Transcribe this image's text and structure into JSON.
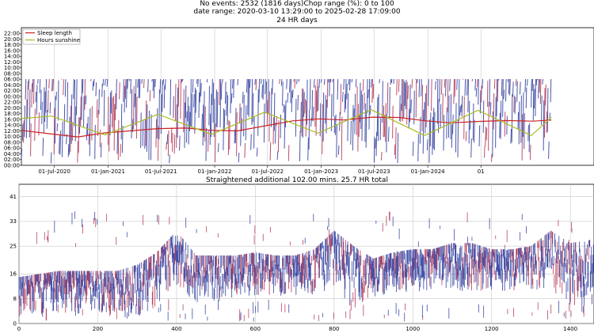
{
  "header": {
    "line1": "No events: 2532 (1816 days)Chop range (%): 0 to 100",
    "line2": "date range: 2020-03-10 13:29:00 to 2025-02-28 17:09:00",
    "line3": "24 HR days"
  },
  "colors": {
    "sleep_length": "#cc2222",
    "hours_sunshine": "#aabb22",
    "event_blue": "#2a3a9c",
    "event_red": "#b03050",
    "grid": "#c8c8c8"
  },
  "chart_data": [
    {
      "type": "line",
      "title": "24 HR days",
      "legend": {
        "entries": [
          "Sleep length",
          "Hours sunshine"
        ],
        "placement": "top-left"
      },
      "x_type": "date",
      "x_range": [
        "2020-03-10",
        "2025-02-28"
      ],
      "x_ticks": [
        "01-Jul-2020",
        "01-Jan-2021",
        "01-Jul-2021",
        "01-Jan-2022",
        "01-Jul-2022",
        "01-Jan-2023",
        "01-Jul-2023",
        "01-Jan-2024",
        "01"
      ],
      "x_tick_dates": [
        "2020-07-01",
        "2021-01-01",
        "2021-07-01",
        "2022-01-01",
        "2022-07-01",
        "2023-01-01",
        "2023-07-01",
        "2024-01-01",
        "2024-07-01"
      ],
      "y_ticks": [
        "00:00",
        "02:00",
        "04:00",
        "06:00",
        "08:00",
        "10:00",
        "12:00",
        "14:00",
        "16:00",
        "18:00",
        "20:00",
        "22:00",
        "00:00",
        "02:00",
        "04:00",
        "06:00",
        "08:00",
        "10:00",
        "12:00",
        "14:00",
        "16:00",
        "18:00",
        "20:00",
        "22:00"
      ],
      "y_range_hours": [
        0,
        48
      ],
      "series": [
        {
          "name": "Sleep length",
          "x": [
            "2020-03-10",
            "2020-06-15",
            "2020-09-20",
            "2020-12-20",
            "2021-03-15",
            "2021-06-20",
            "2021-09-25",
            "2021-12-25",
            "2022-03-20",
            "2022-06-25",
            "2022-09-25",
            "2022-12-25",
            "2023-03-20",
            "2023-06-25",
            "2023-09-25",
            "2023-12-25",
            "2024-03-20",
            "2024-06-25",
            "2024-09-25",
            "2024-12-25",
            "2025-02-28"
          ],
          "y_hours": [
            12.2,
            11.0,
            9.9,
            11.3,
            12.0,
            12.8,
            13.0,
            12.2,
            12.0,
            13.8,
            15.5,
            16.2,
            15.8,
            16.8,
            16.7,
            15.5,
            14.8,
            15.3,
            15.6,
            15.4,
            15.8
          ]
        },
        {
          "name": "Hours sunshine",
          "x": [
            "2020-03-10",
            "2020-06-21",
            "2020-12-21",
            "2021-06-21",
            "2021-12-21",
            "2022-06-21",
            "2022-12-21",
            "2023-06-21",
            "2023-12-21",
            "2024-06-21",
            "2024-12-21",
            "2025-02-28"
          ],
          "y_hours": [
            16.3,
            17.2,
            10.6,
            17.8,
            10.8,
            18.5,
            11.2,
            19.4,
            10.4,
            19.2,
            10.4,
            16.8
          ]
        }
      ]
    },
    {
      "type": "scatter",
      "title": "Straightened additional 102.00 mins. 25.7 HR total",
      "x_ticks": [
        0,
        200,
        400,
        600,
        800,
        1000,
        1200,
        1400
      ],
      "y_ticks": [
        0,
        8,
        16,
        25,
        33,
        41
      ],
      "x_range": [
        0,
        1460
      ],
      "y_range": [
        0,
        45
      ],
      "trend": {
        "x": [
          0,
          50,
          100,
          150,
          200,
          250,
          300,
          350,
          400,
          450,
          500,
          550,
          600,
          650,
          700,
          750,
          800,
          850,
          900,
          950,
          1000,
          1050,
          1100,
          1150,
          1200,
          1250,
          1300,
          1350,
          1400,
          1450
        ],
        "low": [
          2,
          2,
          3,
          3,
          3,
          2,
          2,
          5,
          12,
          6,
          7,
          8,
          9,
          9,
          9,
          9,
          11,
          4,
          8,
          10,
          10,
          11,
          11,
          10,
          10,
          10,
          11,
          11,
          5,
          6
        ],
        "high": [
          13,
          14,
          15,
          15,
          15,
          15,
          17,
          21,
          28,
          20,
          20,
          20,
          21,
          20,
          20,
          22,
          28,
          23,
          19,
          21,
          22,
          22,
          24,
          24,
          22,
          22,
          23,
          28,
          24,
          25
        ]
      }
    }
  ]
}
